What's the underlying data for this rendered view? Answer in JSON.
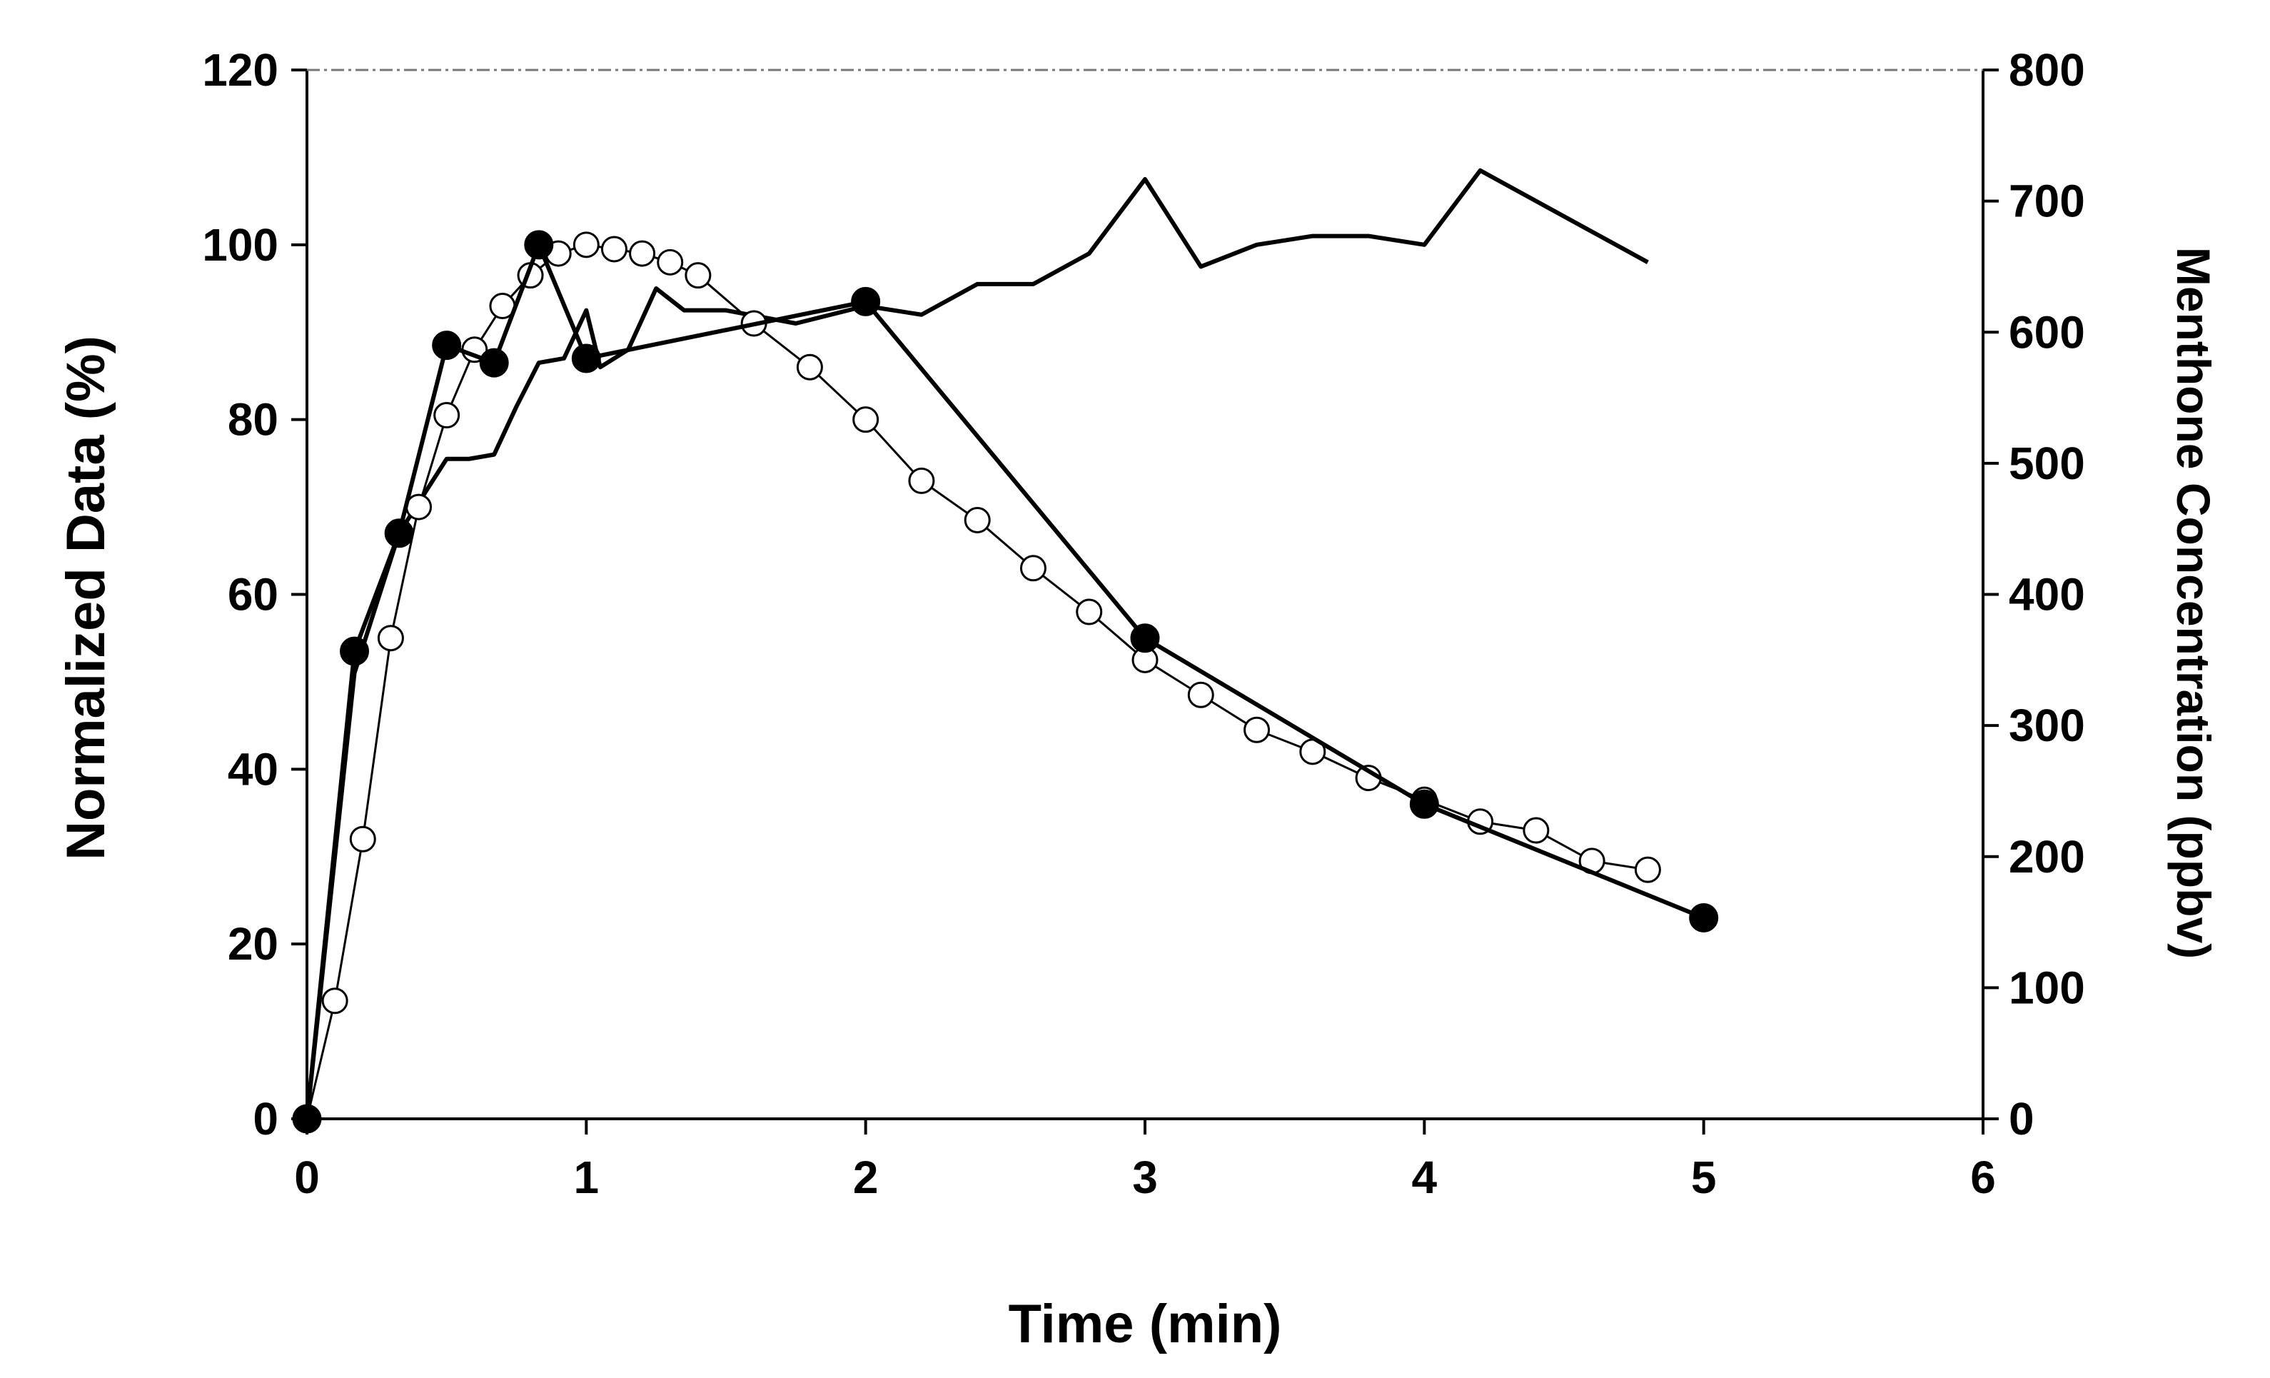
{
  "chart_data": {
    "type": "line",
    "title": "",
    "xlabel": "Time (min)",
    "ylabel": "Normalized Data (%)",
    "y2label": "Menthone Concentration (ppbv)",
    "xlim": [
      0,
      6
    ],
    "ylim": [
      0,
      120
    ],
    "y2lim": [
      0,
      800
    ],
    "x_ticks": [
      "0",
      "1",
      "2",
      "3",
      "4",
      "5",
      "6"
    ],
    "y_ticks": [
      "0",
      "20",
      "40",
      "60",
      "80",
      "100",
      "120"
    ],
    "y2_ticks": [
      "0",
      "100",
      "200",
      "300",
      "400",
      "500",
      "600",
      "700",
      "800"
    ],
    "grid": false,
    "series": [
      {
        "name": "filled-circle",
        "axis": "left",
        "marker": "filled",
        "x": [
          0,
          0.17,
          0.33,
          0.5,
          0.67,
          0.83,
          1.0,
          2.0,
          3.0,
          4.0,
          5.0
        ],
        "values": [
          0,
          53.5,
          67,
          88.5,
          86.5,
          100,
          87,
          93.5,
          55,
          36,
          23
        ]
      },
      {
        "name": "open-circle",
        "axis": "left",
        "marker": "open",
        "x": [
          0,
          0.1,
          0.2,
          0.3,
          0.4,
          0.5,
          0.6,
          0.7,
          0.8,
          0.9,
          1.0,
          1.1,
          1.2,
          1.3,
          1.4,
          1.6,
          1.8,
          2.0,
          2.2,
          2.4,
          2.6,
          2.8,
          3.0,
          3.2,
          3.4,
          3.6,
          3.8,
          4.0,
          4.2,
          4.4,
          4.6,
          4.8
        ],
        "values": [
          0,
          13.5,
          32,
          55,
          70,
          80.5,
          88,
          93,
          96.5,
          99,
          100,
          99.5,
          99,
          98,
          96.5,
          91,
          86,
          80,
          73,
          68.5,
          63,
          58,
          52.5,
          48.5,
          44.5,
          42,
          39,
          36.5,
          34,
          33,
          29.5,
          28.5
        ]
      },
      {
        "name": "line",
        "axis": "left",
        "marker": "none",
        "x": [
          0,
          0.17,
          0.33,
          0.5,
          0.58,
          0.67,
          0.75,
          0.83,
          0.92,
          1.0,
          1.05,
          1.15,
          1.25,
          1.35,
          1.5,
          1.75,
          2.0,
          2.2,
          2.4,
          2.6,
          2.8,
          3.0,
          3.2,
          3.4,
          3.6,
          3.8,
          4.0,
          4.2,
          4.4,
          4.6,
          4.8
        ],
        "values": [
          0,
          51,
          67,
          75.5,
          75.5,
          76,
          81.5,
          86.5,
          87,
          92.5,
          86,
          88,
          95,
          92.5,
          92.5,
          91,
          93,
          92,
          95.5,
          95.5,
          99,
          107.5,
          97.5,
          100,
          101,
          101,
          100,
          108.5,
          105,
          101.5,
          98
        ]
      }
    ]
  }
}
